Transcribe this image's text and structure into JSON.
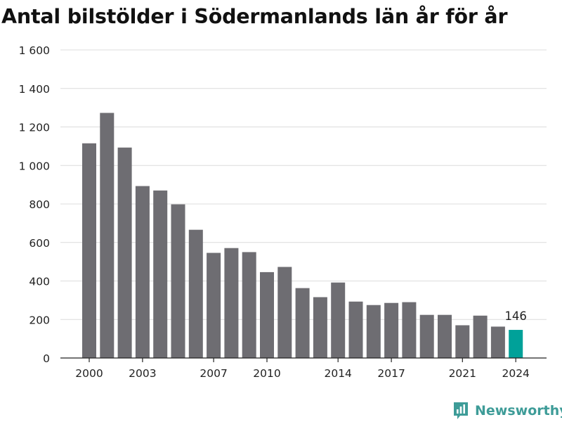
{
  "title": "Antal bilstölder i Södermanlands län år för år",
  "brand": {
    "name": "Newsworthy",
    "icon": "newsworthy-logo-icon",
    "color": "#3e9c98"
  },
  "chart_data": {
    "type": "bar",
    "title": "Antal bilstölder i Södermanlands län år för år",
    "xlabel": "",
    "ylabel": "",
    "categories": [
      "2000",
      "2001",
      "2002",
      "2003",
      "2004",
      "2005",
      "2006",
      "2007",
      "2008",
      "2009",
      "2010",
      "2011",
      "2012",
      "2013",
      "2014",
      "2015",
      "2016",
      "2017",
      "2018",
      "2019",
      "2020",
      "2021",
      "2022",
      "2023",
      "2024"
    ],
    "values": [
      1115,
      1273,
      1093,
      893,
      870,
      798,
      666,
      546,
      571,
      550,
      446,
      473,
      363,
      316,
      392,
      293,
      275,
      286,
      290,
      224,
      224,
      170,
      220,
      163,
      146
    ],
    "x_tick_labels": [
      "2000",
      "2003",
      "2007",
      "2010",
      "2014",
      "2017",
      "2021",
      "2024"
    ],
    "y_ticks": [
      0,
      200,
      400,
      600,
      800,
      1000,
      1200,
      1400,
      1600
    ],
    "y_tick_labels": [
      "0",
      "200",
      "400",
      "600",
      "800",
      "1 000",
      "1 200",
      "1 400",
      "1 600"
    ],
    "ylim": [
      0,
      1600
    ],
    "grid": true,
    "legend": "none",
    "bar_color": "#6e6d72",
    "highlight_color": "#00a199",
    "highlight_category": "2024",
    "highlight_label": "146"
  }
}
